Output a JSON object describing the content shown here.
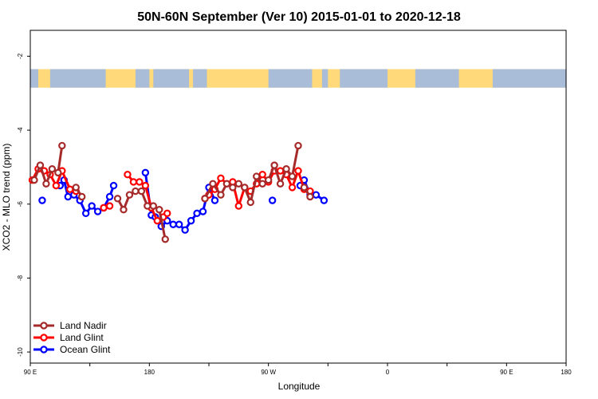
{
  "chart_data": {
    "type": "line",
    "title": "50N-60N September (Ver 10)   2015-01-01 to 2020-12-18",
    "xlabel": "Longitude",
    "ylabel": "XCO2 - MLO trend (ppm)",
    "xlim": [
      -90,
      180
    ],
    "ylim": [
      -10.3,
      -1.3
    ],
    "x_ticks": [
      -90,
      -60,
      -30,
      0,
      30,
      60,
      90,
      120,
      150,
      180
    ],
    "x_tick_labels": [
      "90 E",
      "",
      "180",
      "",
      "90 W",
      "",
      "0",
      "",
      "90 E",
      "180"
    ],
    "y_ticks": [
      -10,
      -8,
      -6,
      -4,
      -2
    ],
    "y_tick_labels": [
      "-10",
      "-8",
      "-6",
      "-4",
      "-2"
    ],
    "grid": false,
    "legend_position": "bottom-left",
    "map_band": {
      "y_range": [
        -2.85,
        -2.35
      ],
      "land_color": "#a9bcd8",
      "ocean_color": "#ffd97a"
    },
    "series": [
      {
        "name": "Land Nadir",
        "color": "#a52a2a",
        "segments": [
          [
            [
              -88,
              -5.35
            ],
            [
              -85,
              -4.95
            ],
            [
              -82,
              -5.45
            ],
            [
              -79,
              -5.05
            ],
            [
              -76,
              -5.15
            ],
            [
              -74,
              -4.42
            ]
          ],
          [
            [
              -67,
              -5.55
            ],
            [
              -64,
              -5.8
            ]
          ],
          [
            [
              -46,
              -5.85
            ],
            [
              -43,
              -6.15
            ],
            [
              -40,
              -5.75
            ],
            [
              -37,
              -5.65
            ],
            [
              -34,
              -5.65
            ],
            [
              -31,
              -6.05
            ],
            [
              -28,
              -6.05
            ],
            [
              -25,
              -6.15
            ],
            [
              -22,
              -6.95
            ]
          ],
          [
            [
              -2,
              -5.85
            ],
            [
              2,
              -5.45
            ],
            [
              6,
              -5.75
            ],
            [
              9,
              -5.45
            ],
            [
              12,
              -5.55
            ],
            [
              15,
              -5.45
            ],
            [
              18,
              -5.55
            ],
            [
              21,
              -5.95
            ],
            [
              24,
              -5.25
            ],
            [
              27,
              -5.45
            ],
            [
              30,
              -5.35
            ],
            [
              33,
              -4.95
            ],
            [
              36,
              -5.45
            ],
            [
              39,
              -5.05
            ],
            [
              42,
              -5.25
            ],
            [
              45,
              -4.42
            ]
          ],
          [
            [
              48,
              -5.55
            ],
            [
              51,
              -5.8
            ]
          ]
        ]
      },
      {
        "name": "Land Glint",
        "color": "#ff0000",
        "segments": [
          [
            [
              -89,
              -5.35
            ],
            [
              -86,
              -5.05
            ],
            [
              -83,
              -5.1
            ],
            [
              -80,
              -5.2
            ],
            [
              -77,
              -5.5
            ],
            [
              -74,
              -5.1
            ],
            [
              -70,
              -5.6
            ],
            [
              -67,
              -5.65
            ]
          ],
          [
            [
              -53,
              -6.1
            ],
            [
              -50,
              -6.05
            ]
          ],
          [
            [
              -41,
              -5.2
            ],
            [
              -38,
              -5.4
            ],
            [
              -35,
              -5.4
            ],
            [
              -32,
              -5.5
            ],
            [
              -29,
              -6.1
            ],
            [
              -26,
              -6.45
            ],
            [
              -23,
              -6.35
            ],
            [
              -21,
              -6.25
            ]
          ],
          [
            [
              -2,
              -5.85
            ],
            [
              0,
              -5.75
            ],
            [
              3,
              -5.6
            ],
            [
              6,
              -5.3
            ],
            [
              9,
              -5.45
            ],
            [
              12,
              -5.4
            ],
            [
              15,
              -6.05
            ],
            [
              18,
              -5.55
            ],
            [
              21,
              -5.65
            ],
            [
              24,
              -5.45
            ],
            [
              27,
              -5.2
            ],
            [
              30,
              -5.4
            ],
            [
              33,
              -5.1
            ],
            [
              36,
              -5.1
            ],
            [
              39,
              -5.2
            ],
            [
              42,
              -5.55
            ],
            [
              45,
              -5.1
            ],
            [
              48,
              -5.6
            ],
            [
              51,
              -5.65
            ]
          ]
        ]
      },
      {
        "name": "Ocean Glint",
        "color": "#0000ff",
        "segments": [
          [
            [
              -84,
              -5.9
            ]
          ],
          [
            [
              -75,
              -5.5
            ],
            [
              -73,
              -5.35
            ],
            [
              -71,
              -5.8
            ],
            [
              -68,
              -5.75
            ],
            [
              -65,
              -5.9
            ],
            [
              -62,
              -6.25
            ],
            [
              -59,
              -6.05
            ],
            [
              -56,
              -6.2
            ],
            [
              -53,
              -6.1
            ],
            [
              -50,
              -5.8
            ],
            [
              -48,
              -5.5
            ]
          ],
          [
            [
              -32,
              -5.15
            ],
            [
              -29,
              -6.3
            ],
            [
              -27,
              -6.35
            ],
            [
              -24,
              -6.6
            ],
            [
              -21,
              -6.45
            ],
            [
              -18,
              -6.55
            ],
            [
              -15,
              -6.55
            ],
            [
              -12,
              -6.7
            ],
            [
              -9,
              -6.45
            ],
            [
              -6,
              -6.25
            ],
            [
              -3,
              -6.2
            ],
            [
              0,
              -5.55
            ],
            [
              3,
              -5.9
            ]
          ],
          [
            [
              32,
              -5.9
            ]
          ],
          [
            [
              46,
              -5.5
            ],
            [
              48,
              -5.35
            ],
            [
              51,
              -5.75
            ],
            [
              54,
              -5.75
            ],
            [
              58,
              -5.9
            ]
          ]
        ]
      }
    ]
  }
}
